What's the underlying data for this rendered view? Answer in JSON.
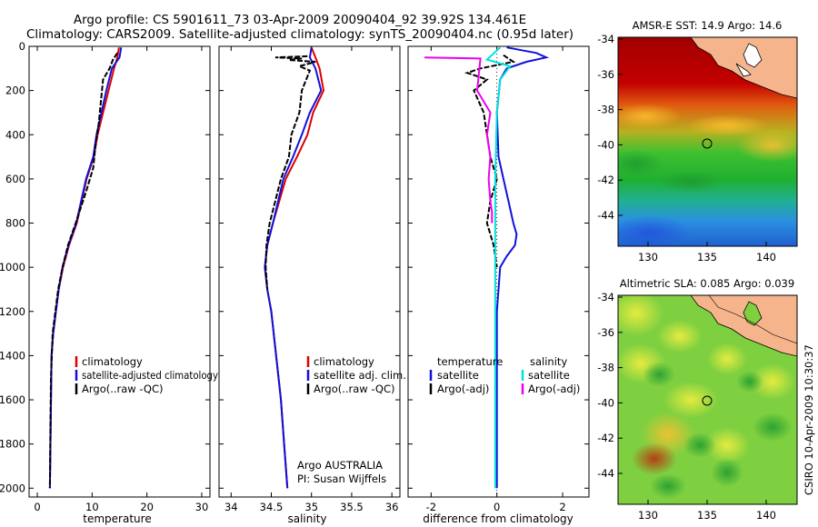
{
  "header": {
    "line1": "Argo profile: CS 5901611_73 03-Apr-2009 20090404_92 39.92S 134.461E",
    "line2": "Climatology: CARS2009. Satellite-adjusted climatology: synTS_20090404.nc (0.95d later)"
  },
  "colors": {
    "climatology": "#dd0000",
    "satellite": "#1010dd",
    "argo": "#000000",
    "sat_salinity": "#00e0e0",
    "argo_salinity_diff": "#ee00ee",
    "land": "#f5b48c"
  },
  "chart_data": [
    {
      "type": "line",
      "panel": "temperature",
      "xlabel": "temperature",
      "ylabel": "",
      "xlim": [
        -1.5,
        31.5
      ],
      "ylim": [
        2040,
        0
      ],
      "y_reversed": true,
      "xticks": [
        0,
        10,
        20,
        30
      ],
      "yticks": [
        0,
        200,
        400,
        600,
        800,
        1000,
        1200,
        1400,
        1600,
        1800,
        2000
      ],
      "legend": [
        "climatology",
        "satellite-adjusted climatology",
        "Argo(..raw -QC)"
      ],
      "series": [
        {
          "name": "climatology",
          "x": [
            14.9,
            14.6,
            14.0,
            13.0,
            12.0,
            11.0,
            10.3,
            9.0,
            7.2,
            5.8,
            4.7,
            3.9,
            3.4,
            2.9,
            2.6,
            2.5,
            2.4,
            2.3
          ],
          "y": [
            5,
            50,
            100,
            200,
            300,
            400,
            500,
            600,
            800,
            900,
            1000,
            1100,
            1200,
            1300,
            1400,
            1600,
            1800,
            2000
          ]
        },
        {
          "name": "satellite-adjusted climatology",
          "x": [
            15.3,
            15.0,
            13.6,
            12.6,
            11.7,
            10.8,
            10.2,
            8.9,
            7.1,
            5.7,
            4.6,
            3.9,
            3.4,
            2.9,
            2.6,
            2.5,
            2.4,
            2.3
          ],
          "y": [
            5,
            50,
            100,
            200,
            300,
            400,
            500,
            600,
            800,
            900,
            1000,
            1100,
            1200,
            1300,
            1400,
            1600,
            1800,
            2000
          ]
        },
        {
          "name": "Argo(..raw -QC)",
          "x": [
            14.6,
            13.8,
            13.2,
            12.0,
            11.6,
            11.2,
            10.6,
            10.2,
            9.0,
            7.0,
            5.6,
            4.6,
            3.8,
            3.3,
            2.8,
            2.5,
            2.4,
            2.3
          ],
          "y": [
            30,
            60,
            100,
            150,
            250,
            350,
            450,
            550,
            650,
            800,
            900,
            1000,
            1100,
            1200,
            1300,
            1500,
            1700,
            2000
          ]
        }
      ]
    },
    {
      "type": "line",
      "panel": "salinity",
      "xlabel": "salinity",
      "xlim": [
        33.85,
        36.1
      ],
      "ylim": [
        2040,
        0
      ],
      "y_reversed": true,
      "xticks": [
        34,
        34.5,
        35,
        35.5,
        36
      ],
      "legend": [
        "climatology",
        "satellite adj. clim.",
        "Argo(..raw -QC)"
      ],
      "series": [
        {
          "name": "climatology",
          "x": [
            35.0,
            35.05,
            35.1,
            35.15,
            35.02,
            34.95,
            34.82,
            34.68,
            34.52,
            34.45,
            34.42,
            34.45,
            34.5,
            34.56,
            34.62,
            34.66,
            34.68,
            34.7
          ],
          "y": [
            5,
            50,
            100,
            200,
            300,
            400,
            500,
            600,
            800,
            900,
            1000,
            1100,
            1200,
            1400,
            1600,
            1800,
            1900,
            2000
          ]
        },
        {
          "name": "satellite adj. clim.",
          "x": [
            35.0,
            34.98,
            35.05,
            35.12,
            34.98,
            34.88,
            34.77,
            34.65,
            34.52,
            34.45,
            34.42,
            34.45,
            34.5,
            34.56,
            34.62,
            34.66,
            34.68,
            34.7
          ],
          "y": [
            5,
            50,
            100,
            200,
            300,
            400,
            500,
            600,
            800,
            900,
            1000,
            1100,
            1200,
            1400,
            1600,
            1800,
            1900,
            2000
          ]
        },
        {
          "name": "Argo(..raw -QC)",
          "x": [
            34.95,
            34.55,
            34.88,
            34.72,
            35.05,
            34.85,
            34.98,
            34.88,
            34.85,
            34.75,
            34.72,
            34.62,
            34.55,
            34.48,
            34.44,
            34.43,
            34.45
          ],
          "y": [
            45,
            50,
            55,
            62,
            70,
            90,
            110,
            200,
            300,
            400,
            500,
            600,
            700,
            800,
            900,
            1000,
            1100
          ]
        }
      ],
      "annotation": [
        "Argo AUSTRALIA",
        "PI: Susan Wijffels"
      ]
    },
    {
      "type": "line",
      "panel": "difference",
      "xlabel": "difference from climatology",
      "xlim": [
        -2.7,
        2.8
      ],
      "ylim": [
        2040,
        0
      ],
      "y_reversed": true,
      "xticks": [
        -2,
        0,
        2
      ],
      "legend": {
        "temperature": [
          "satellite",
          "Argo(-adj)"
        ],
        "salinity": [
          "satellite",
          "Argo(-adj)"
        ]
      },
      "series": [
        {
          "name": "temperature satellite",
          "x": [
            0.3,
            1.2,
            1.5,
            0.9,
            0.3,
            0.1,
            0.0,
            0.05,
            0.2,
            0.35,
            0.5,
            0.6,
            0.55,
            0.3,
            0.1,
            0.0,
            0.0,
            0.0
          ],
          "y": [
            5,
            30,
            50,
            70,
            100,
            150,
            300,
            500,
            600,
            700,
            800,
            850,
            900,
            950,
            1000,
            1200,
            1600,
            2000
          ]
        },
        {
          "name": "temperature Argo(-adj)",
          "x": [
            0.2,
            0.5,
            -0.5,
            -0.9,
            -0.3,
            -0.7,
            -0.4,
            -0.2,
            0.0,
            -0.2,
            -0.3,
            -0.1,
            -0.05,
            0.0
          ],
          "y": [
            40,
            70,
            100,
            120,
            150,
            200,
            300,
            500,
            600,
            700,
            800,
            900,
            950,
            1000
          ]
        },
        {
          "name": "salinity satellite",
          "x": [
            0.1,
            -0.3,
            0.4,
            0.1,
            0.0,
            -0.05,
            -0.05,
            -0.05,
            -0.05,
            -0.05
          ],
          "y": [
            5,
            60,
            90,
            150,
            300,
            600,
            1000,
            1400,
            1800,
            2000
          ]
        },
        {
          "name": "salinity Argo(-adj)",
          "x": [
            -2.2,
            -0.5,
            -0.6,
            -0.2,
            -0.3,
            -0.2,
            -0.25,
            -0.2,
            -0.15,
            -0.15
          ],
          "y": [
            50,
            55,
            200,
            300,
            400,
            500,
            600,
            700,
            750,
            800
          ]
        }
      ]
    }
  ],
  "maps": [
    {
      "title": "AMSR-E SST: 14.9 Argo: 14.6",
      "xticks": [
        "130",
        "135",
        "140"
      ],
      "yticks": [
        "-34",
        "-36",
        "-38",
        "-40",
        "-42",
        "-44"
      ],
      "marker": {
        "lon": 134.461,
        "lat": -39.92
      }
    },
    {
      "title": "Altimetric SLA: 0.085 Argo: 0.039",
      "xticks": [
        "130",
        "135",
        "140"
      ],
      "yticks": [
        "-34",
        "-36",
        "-38",
        "-40",
        "-42",
        "-44"
      ],
      "marker": {
        "lon": 134.461,
        "lat": -39.92
      }
    }
  ],
  "footer": {
    "stamp": "CSIRO 10-Apr-2009 10:30:37"
  }
}
